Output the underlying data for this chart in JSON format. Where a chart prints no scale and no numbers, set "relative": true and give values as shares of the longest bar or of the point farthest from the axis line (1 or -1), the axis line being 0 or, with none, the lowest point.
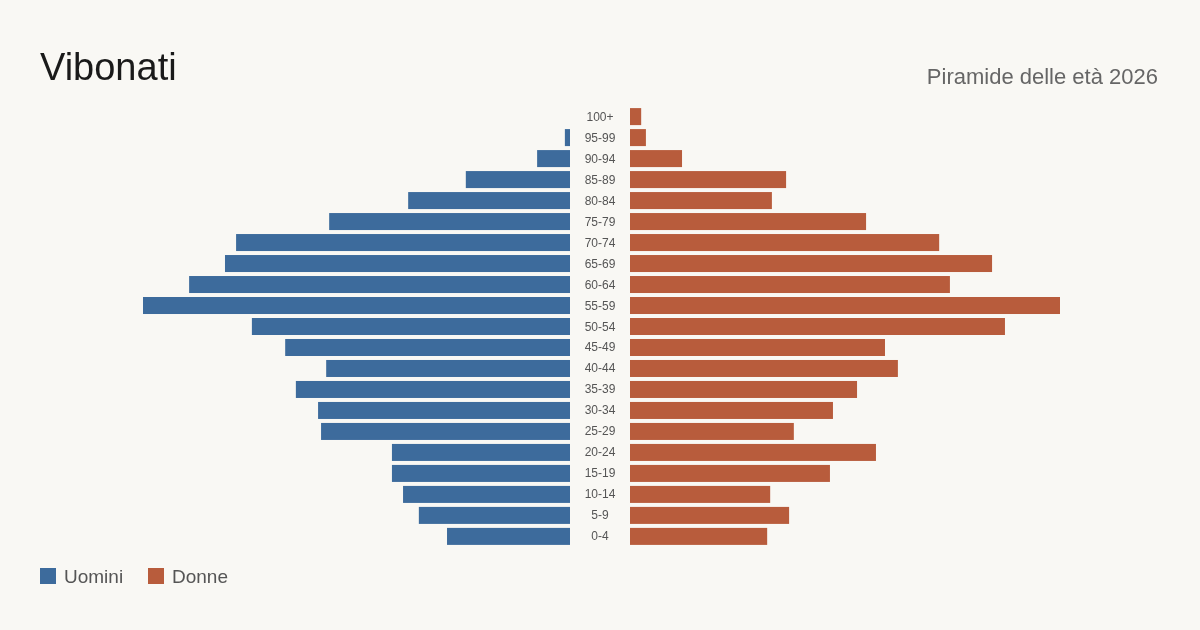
{
  "chart_data": [
    {
      "type": "bar",
      "orientation": "horizontal",
      "relative": true,
      "title": "Vibonati",
      "tick_labels": false,
      "categories": [
        "100+",
        "95-99",
        "90-94",
        "85-89",
        "80-84",
        "75-79",
        "70-74",
        "65-69",
        "60-64",
        "55-59",
        "50-54",
        "45-49",
        "40-44",
        "35-39",
        "30-34",
        "25-29",
        "20-24",
        "15-19",
        "10-14",
        "5-9",
        "0-4"
      ],
      "series": [
        {
          "name": "Uomini",
          "color": "#3d6b9c",
          "values": [
            0,
            -0.012,
            -0.077,
            -0.244,
            -0.379,
            -0.564,
            -0.782,
            -0.808,
            -0.892,
            -1,
            -0.745,
            -0.667,
            -0.571,
            -0.642,
            -0.59,
            -0.583,
            -0.417,
            -0.417,
            -0.391,
            -0.354,
            -0.288
          ]
        }
      ],
      "legend": "bottom left"
    },
    {
      "type": "bar",
      "orientation": "horizontal",
      "relative": true,
      "subtitle": "Piramide delle età 2026",
      "categories": [
        "100+",
        "95-99",
        "90-94",
        "85-89",
        "80-84",
        "75-79",
        "70-74",
        "65-69",
        "60-64",
        "55-59",
        "50-54",
        "45-49",
        "40-44",
        "35-39",
        "30-34",
        "25-29",
        "20-24",
        "15-19",
        "10-14",
        "5-9",
        "0-4"
      ],
      "series": [
        {
          "name": "Donne",
          "color": "#b85c3c",
          "values": [
            0.026,
            0.037,
            0.121,
            0.363,
            0.33,
            0.549,
            0.719,
            0.842,
            0.744,
            1,
            0.872,
            0.593,
            0.623,
            0.528,
            0.472,
            0.381,
            0.572,
            0.465,
            0.326,
            0.37,
            0.319
          ]
        }
      ],
      "legend": "bottom left"
    }
  ]
}
